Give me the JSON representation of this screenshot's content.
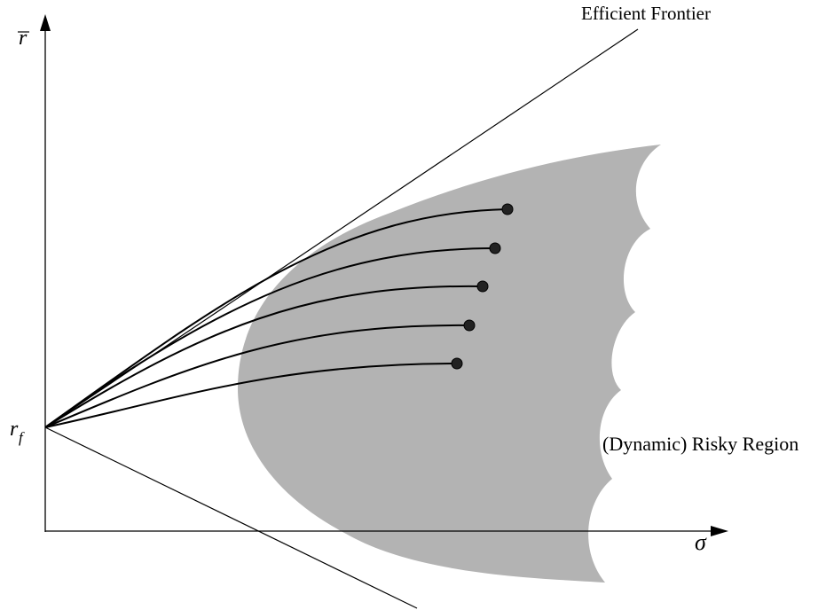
{
  "labels": {
    "y_axis": "r",
    "x_axis": "σ",
    "risk_free_main": "r",
    "risk_free_sub": "f",
    "efficient_frontier": "Efficient Frontier",
    "risky_region": "(Dynamic) Risky Region"
  },
  "colors": {
    "region_fill": "#b3b3b3",
    "line": "#000000",
    "dot": "#222222",
    "background": "#ffffff"
  },
  "trajectories": {
    "count": 5,
    "end_marker": "filled-circle"
  }
}
